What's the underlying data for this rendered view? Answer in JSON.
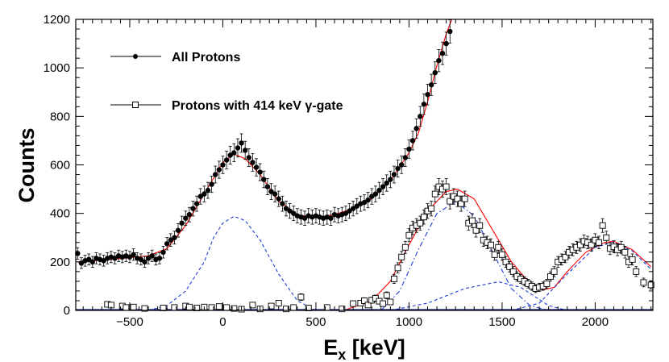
{
  "chart_data": {
    "type": "scatter",
    "title": "",
    "xlabel_main": "E",
    "xlabel_sub": "x",
    "xlabel_unit": " [keV]",
    "ylabel": "Counts",
    "xlim": [
      -790,
      2310
    ],
    "ylim": [
      0,
      1200
    ],
    "x_ticks": [
      -500,
      0,
      500,
      1000,
      1500,
      2000
    ],
    "x_tick_labels": [
      "−500",
      "0",
      "500",
      "1000",
      "1500",
      "2000"
    ],
    "y_ticks": [
      0,
      200,
      400,
      600,
      800,
      1000,
      1200
    ],
    "y_tick_labels": [
      "0",
      "200",
      "400",
      "600",
      "800",
      "1000",
      "1200"
    ],
    "legend": [
      {
        "label": "All Protons",
        "marker": "filled-circle"
      },
      {
        "label": "Protons with 414 keV γ-gate",
        "marker": "open-square"
      }
    ],
    "series": [
      {
        "name": "All Protons",
        "marker": "filled-circle",
        "points": [
          [
            -780,
            235
          ],
          [
            -760,
            195
          ],
          [
            -740,
            205
          ],
          [
            -720,
            210
          ],
          [
            -700,
            200
          ],
          [
            -680,
            215
          ],
          [
            -660,
            210
          ],
          [
            -640,
            205
          ],
          [
            -620,
            215
          ],
          [
            -600,
            220
          ],
          [
            -580,
            215
          ],
          [
            -560,
            225
          ],
          [
            -540,
            220
          ],
          [
            -520,
            225
          ],
          [
            -500,
            220
          ],
          [
            -480,
            230
          ],
          [
            -460,
            215
          ],
          [
            -440,
            210
          ],
          [
            -420,
            200
          ],
          [
            -400,
            215
          ],
          [
            -380,
            225
          ],
          [
            -360,
            210
          ],
          [
            -340,
            215
          ],
          [
            -320,
            240
          ],
          [
            -300,
            275
          ],
          [
            -280,
            290
          ],
          [
            -260,
            300
          ],
          [
            -240,
            330
          ],
          [
            -220,
            360
          ],
          [
            -200,
            380
          ],
          [
            -180,
            395
          ],
          [
            -160,
            420
          ],
          [
            -140,
            440
          ],
          [
            -120,
            470
          ],
          [
            -100,
            480
          ],
          [
            -80,
            495
          ],
          [
            -60,
            520
          ],
          [
            -40,
            560
          ],
          [
            -20,
            580
          ],
          [
            0,
            600
          ],
          [
            20,
            620
          ],
          [
            40,
            640
          ],
          [
            60,
            650
          ],
          [
            80,
            670
          ],
          [
            100,
            690
          ],
          [
            120,
            660
          ],
          [
            140,
            630
          ],
          [
            160,
            610
          ],
          [
            180,
            590
          ],
          [
            200,
            570
          ],
          [
            220,
            540
          ],
          [
            240,
            510
          ],
          [
            260,
            490
          ],
          [
            280,
            480
          ],
          [
            300,
            460
          ],
          [
            320,
            440
          ],
          [
            340,
            420
          ],
          [
            360,
            410
          ],
          [
            380,
            400
          ],
          [
            400,
            390
          ],
          [
            420,
            385
          ],
          [
            440,
            380
          ],
          [
            460,
            390
          ],
          [
            480,
            385
          ],
          [
            500,
            390
          ],
          [
            520,
            385
          ],
          [
            540,
            380
          ],
          [
            560,
            385
          ],
          [
            580,
            380
          ],
          [
            600,
            395
          ],
          [
            620,
            390
          ],
          [
            640,
            395
          ],
          [
            660,
            400
          ],
          [
            680,
            410
          ],
          [
            700,
            420
          ],
          [
            720,
            430
          ],
          [
            740,
            440
          ],
          [
            760,
            445
          ],
          [
            780,
            455
          ],
          [
            800,
            470
          ],
          [
            820,
            480
          ],
          [
            840,
            495
          ],
          [
            860,
            510
          ],
          [
            880,
            525
          ],
          [
            900,
            540
          ],
          [
            920,
            560
          ],
          [
            940,
            585
          ],
          [
            960,
            600
          ],
          [
            980,
            630
          ],
          [
            1000,
            665
          ],
          [
            1020,
            700
          ],
          [
            1040,
            750
          ],
          [
            1060,
            800
          ],
          [
            1080,
            850
          ],
          [
            1100,
            890
          ],
          [
            1120,
            930
          ],
          [
            1140,
            980
          ],
          [
            1160,
            1030
          ],
          [
            1180,
            1060
          ],
          [
            1200,
            1100
          ],
          [
            1220,
            1150
          ]
        ]
      },
      {
        "name": "Protons with 414 keV γ-gate",
        "marker": "open-square",
        "points": [
          [
            -620,
            25
          ],
          [
            -600,
            22
          ],
          [
            -540,
            18
          ],
          [
            -520,
            12
          ],
          [
            -480,
            14
          ],
          [
            -420,
            8
          ],
          [
            -320,
            10
          ],
          [
            -260,
            12
          ],
          [
            -200,
            18
          ],
          [
            -180,
            14
          ],
          [
            -140,
            10
          ],
          [
            -100,
            14
          ],
          [
            -60,
            12
          ],
          [
            -20,
            16
          ],
          [
            20,
            12
          ],
          [
            60,
            8
          ],
          [
            100,
            5
          ],
          [
            160,
            22
          ],
          [
            200,
            6
          ],
          [
            260,
            18
          ],
          [
            300,
            30
          ],
          [
            340,
            6
          ],
          [
            380,
            12
          ],
          [
            420,
            55
          ],
          [
            460,
            10
          ],
          [
            560,
            12
          ],
          [
            640,
            6
          ],
          [
            700,
            28
          ],
          [
            740,
            30
          ],
          [
            760,
            40
          ],
          [
            780,
            22
          ],
          [
            800,
            42
          ],
          [
            820,
            50
          ],
          [
            840,
            38
          ],
          [
            860,
            28
          ],
          [
            880,
            62
          ],
          [
            900,
            35
          ],
          [
            920,
            130
          ],
          [
            940,
            175
          ],
          [
            960,
            220
          ],
          [
            980,
            260
          ],
          [
            1000,
            310
          ],
          [
            1020,
            340
          ],
          [
            1040,
            350
          ],
          [
            1060,
            360
          ],
          [
            1080,
            385
          ],
          [
            1100,
            410
          ],
          [
            1120,
            420
          ],
          [
            1140,
            480
          ],
          [
            1160,
            510
          ],
          [
            1180,
            500
          ],
          [
            1200,
            510
          ],
          [
            1220,
            450
          ],
          [
            1240,
            470
          ],
          [
            1260,
            460
          ],
          [
            1280,
            440
          ],
          [
            1300,
            460
          ],
          [
            1320,
            360
          ],
          [
            1340,
            370
          ],
          [
            1360,
            330
          ],
          [
            1380,
            350
          ],
          [
            1400,
            290
          ],
          [
            1420,
            280
          ],
          [
            1440,
            270
          ],
          [
            1460,
            230
          ],
          [
            1480,
            260
          ],
          [
            1500,
            230
          ],
          [
            1520,
            200
          ],
          [
            1540,
            180
          ],
          [
            1560,
            160
          ],
          [
            1580,
            140
          ],
          [
            1600,
            130
          ],
          [
            1620,
            120
          ],
          [
            1640,
            110
          ],
          [
            1660,
            100
          ],
          [
            1680,
            90
          ],
          [
            1700,
            95
          ],
          [
            1720,
            100
          ],
          [
            1740,
            110
          ],
          [
            1760,
            140
          ],
          [
            1780,
            160
          ],
          [
            1800,
            200
          ],
          [
            1820,
            210
          ],
          [
            1840,
            220
          ],
          [
            1860,
            240
          ],
          [
            1880,
            250
          ],
          [
            1900,
            260
          ],
          [
            1920,
            270
          ],
          [
            1940,
            285
          ],
          [
            1960,
            280
          ],
          [
            1980,
            270
          ],
          [
            2000,
            290
          ],
          [
            2020,
            280
          ],
          [
            2040,
            350
          ],
          [
            2060,
            300
          ],
          [
            2080,
            255
          ],
          [
            2100,
            262
          ],
          [
            2120,
            250
          ],
          [
            2140,
            260
          ],
          [
            2160,
            240
          ],
          [
            2180,
            200
          ],
          [
            2200,
            210
          ],
          [
            2220,
            160
          ],
          [
            2260,
            115
          ],
          [
            2300,
            105
          ]
        ]
      }
    ],
    "fits": [
      {
        "name": "fit-all",
        "color": "#ff0000",
        "style": "solid",
        "points": [
          [
            -780,
            200
          ],
          [
            -600,
            210
          ],
          [
            -400,
            225
          ],
          [
            -300,
            255
          ],
          [
            -200,
            350
          ],
          [
            -100,
            480
          ],
          [
            0,
            610
          ],
          [
            60,
            645
          ],
          [
            120,
            625
          ],
          [
            200,
            560
          ],
          [
            300,
            450
          ],
          [
            400,
            395
          ],
          [
            500,
            382
          ],
          [
            600,
            395
          ],
          [
            700,
            420
          ],
          [
            800,
            460
          ],
          [
            900,
            535
          ],
          [
            1000,
            650
          ],
          [
            1050,
            730
          ],
          [
            1100,
            860
          ],
          [
            1150,
            1010
          ],
          [
            1200,
            1140
          ],
          [
            1230,
            1200
          ]
        ]
      },
      {
        "name": "fit-gated",
        "color": "#ff0000",
        "style": "solid",
        "points": [
          [
            650,
            0
          ],
          [
            800,
            40
          ],
          [
            900,
            120
          ],
          [
            1000,
            270
          ],
          [
            1100,
            410
          ],
          [
            1200,
            490
          ],
          [
            1260,
            500
          ],
          [
            1350,
            460
          ],
          [
            1450,
            330
          ],
          [
            1550,
            200
          ],
          [
            1650,
            110
          ],
          [
            1720,
            85
          ],
          [
            1780,
            95
          ],
          [
            1850,
            160
          ],
          [
            1950,
            240
          ],
          [
            2050,
            280
          ],
          [
            2100,
            285
          ],
          [
            2200,
            250
          ],
          [
            2300,
            180
          ]
        ]
      },
      {
        "name": "component-1",
        "color": "#1f3bd6",
        "style": "dashed",
        "points": [
          [
            -400,
            0
          ],
          [
            -300,
            20
          ],
          [
            -200,
            80
          ],
          [
            -100,
            200
          ],
          [
            -50,
            300
          ],
          [
            0,
            360
          ],
          [
            60,
            388
          ],
          [
            120,
            370
          ],
          [
            200,
            290
          ],
          [
            300,
            150
          ],
          [
            400,
            40
          ],
          [
            500,
            0
          ]
        ]
      },
      {
        "name": "component-2",
        "color": "#1f3bd6",
        "style": "dashdot",
        "points": [
          [
            850,
            0
          ],
          [
            950,
            80
          ],
          [
            1050,
            250
          ],
          [
            1150,
            400
          ],
          [
            1250,
            448
          ],
          [
            1350,
            390
          ],
          [
            1450,
            240
          ],
          [
            1550,
            90
          ],
          [
            1650,
            20
          ],
          [
            1750,
            0
          ]
        ]
      },
      {
        "name": "component-3",
        "color": "#1f3bd6",
        "style": "dashed",
        "points": [
          [
            900,
            0
          ],
          [
            1100,
            30
          ],
          [
            1300,
            90
          ],
          [
            1480,
            118
          ],
          [
            1600,
            95
          ],
          [
            1750,
            20
          ],
          [
            1850,
            0
          ]
        ]
      },
      {
        "name": "component-4",
        "color": "#1f3bd6",
        "style": "dashed",
        "points": [
          [
            1550,
            0
          ],
          [
            1700,
            30
          ],
          [
            1850,
            150
          ],
          [
            2000,
            260
          ],
          [
            2100,
            282
          ],
          [
            2200,
            245
          ],
          [
            2300,
            170
          ]
        ]
      },
      {
        "name": "baseline",
        "color": "#0a1a7a",
        "style": "solid",
        "points": [
          [
            -790,
            2
          ],
          [
            2310,
            2
          ]
        ]
      }
    ]
  }
}
